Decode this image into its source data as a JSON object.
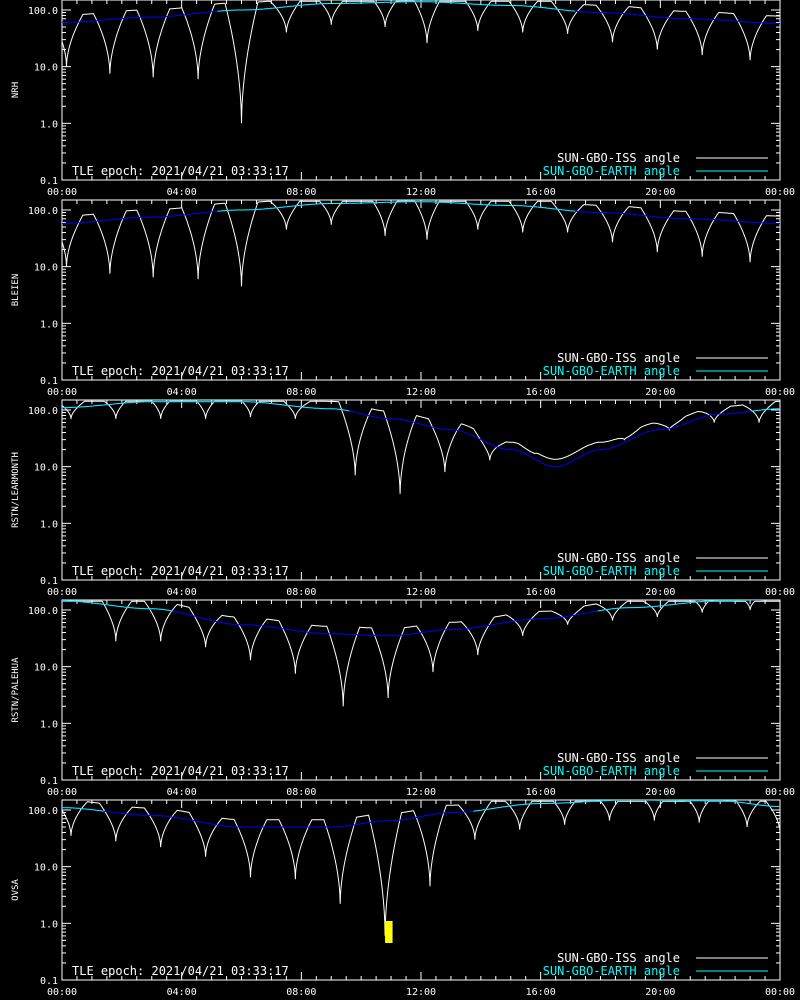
{
  "chart_data": [
    {
      "type": "line",
      "ylabel": "NRH",
      "epoch_label": "TLE epoch: 2021/04/21 03:33:17",
      "x_ticks": [
        "00:00",
        "04:00",
        "08:00",
        "12:00",
        "16:00",
        "20:00",
        "00:00"
      ],
      "y_ticks": [
        "0.1",
        "1.0",
        "10.0",
        "100.0"
      ],
      "y_scale": "log",
      "ylim": [
        0.1,
        150
      ],
      "xlim_hours": [
        0,
        24
      ],
      "grid": false,
      "legend_position": "bottom-right",
      "series": [
        {
          "name": "SUN-GBO-ISS angle",
          "color": "#ffffff",
          "dips": [
            [
              0.15,
              10
            ],
            [
              1.6,
              7.5
            ],
            [
              3.05,
              6.5
            ],
            [
              4.55,
              6.0
            ],
            [
              6.0,
              1.0
            ],
            [
              7.5,
              40
            ],
            [
              9.0,
              55
            ],
            [
              10.8,
              50
            ],
            [
              12.2,
              26
            ],
            [
              13.9,
              43
            ],
            [
              15.4,
              40
            ],
            [
              16.9,
              38
            ],
            [
              18.4,
              27
            ],
            [
              19.9,
              20
            ],
            [
              21.4,
              16
            ],
            [
              23.0,
              13
            ]
          ]
        },
        {
          "name": "SUN-GBO-EARTH angle",
          "color": "#0000ff",
          "color_highlight": "#00ffff",
          "x_hours": [
            0,
            3,
            6,
            9,
            12,
            15,
            18,
            21,
            24
          ],
          "values": [
            60,
            75,
            100,
            130,
            140,
            120,
            90,
            70,
            58
          ]
        }
      ]
    },
    {
      "type": "line",
      "ylabel": "BLEIEN",
      "epoch_label": "TLE epoch: 2021/04/21 03:33:17",
      "x_ticks": [
        "00:00",
        "04:00",
        "08:00",
        "12:00",
        "16:00",
        "20:00",
        "00:00"
      ],
      "y_ticks": [
        "0.1",
        "1.0",
        "10.0",
        "100.0"
      ],
      "y_scale": "log",
      "ylim": [
        0.1,
        150
      ],
      "xlim_hours": [
        0,
        24
      ],
      "grid": false,
      "legend_position": "bottom-right",
      "series": [
        {
          "name": "SUN-GBO-ISS angle",
          "color": "#ffffff",
          "dips": [
            [
              0.15,
              10
            ],
            [
              1.6,
              7.5
            ],
            [
              3.05,
              6.5
            ],
            [
              4.55,
              6.0
            ],
            [
              6.0,
              4.5
            ],
            [
              7.5,
              45
            ],
            [
              9.0,
              55
            ],
            [
              10.8,
              35
            ],
            [
              12.2,
              30
            ],
            [
              13.9,
              45
            ],
            [
              15.4,
              40
            ],
            [
              16.9,
              40
            ],
            [
              18.4,
              27
            ],
            [
              19.9,
              18
            ],
            [
              21.4,
              15
            ],
            [
              23.0,
              12
            ]
          ]
        },
        {
          "name": "SUN-GBO-EARTH angle",
          "color": "#0000ff",
          "color_highlight": "#00ffff",
          "x_hours": [
            0,
            3,
            6,
            9,
            12,
            15,
            18,
            21,
            24
          ],
          "values": [
            58,
            75,
            100,
            130,
            140,
            120,
            90,
            70,
            58
          ]
        }
      ]
    },
    {
      "type": "line",
      "ylabel": "RSTN/LEARMONTH",
      "epoch_label": "TLE epoch: 2021/04/21 03:33:17",
      "x_ticks": [
        "00:00",
        "04:00",
        "08:00",
        "12:00",
        "16:00",
        "20:00",
        "00:00"
      ],
      "y_ticks": [
        "0.1",
        "1.0",
        "10.0",
        "100.0"
      ],
      "y_scale": "log",
      "ylim": [
        0.1,
        150
      ],
      "xlim_hours": [
        0,
        24
      ],
      "grid": false,
      "legend_position": "bottom-right",
      "series": [
        {
          "name": "SUN-GBO-ISS angle",
          "color": "#ffffff",
          "dips": [
            [
              0.3,
              70
            ],
            [
              1.8,
              70
            ],
            [
              3.3,
              70
            ],
            [
              4.8,
              70
            ],
            [
              6.3,
              75
            ],
            [
              7.8,
              70
            ],
            [
              9.8,
              7.0
            ],
            [
              11.3,
              3.3
            ],
            [
              12.8,
              8.0
            ],
            [
              14.3,
              13
            ],
            [
              15.8,
              17
            ],
            [
              17.3,
              24
            ],
            [
              18.8,
              30
            ],
            [
              20.3,
              45
            ],
            [
              21.8,
              60
            ],
            [
              23.3,
              60
            ]
          ]
        },
        {
          "name": "SUN-GBO-EARTH angle",
          "color": "#0000ff",
          "color_highlight": "#00ffff",
          "x_hours": [
            0,
            3,
            6,
            9,
            11,
            13,
            15,
            16.5,
            18,
            20,
            22,
            24
          ],
          "values": [
            110,
            140,
            140,
            105,
            70,
            45,
            20,
            10,
            20,
            45,
            85,
            105
          ]
        }
      ]
    },
    {
      "type": "line",
      "ylabel": "RSTN/PALEHUA",
      "epoch_label": "TLE epoch: 2021/04/21 03:33:17",
      "x_ticks": [
        "00:00",
        "04:00",
        "08:00",
        "12:00",
        "16:00",
        "20:00",
        "00:00"
      ],
      "y_ticks": [
        "0.1",
        "1.0",
        "10.0",
        "100.0"
      ],
      "y_scale": "log",
      "ylim": [
        0.1,
        150
      ],
      "xlim_hours": [
        0,
        24
      ],
      "grid": false,
      "legend_position": "bottom-right",
      "series": [
        {
          "name": "SUN-GBO-ISS angle",
          "color": "#ffffff",
          "dips": [
            [
              1.8,
              28
            ],
            [
              3.3,
              28
            ],
            [
              4.8,
              22
            ],
            [
              6.3,
              13
            ],
            [
              7.8,
              7.5
            ],
            [
              9.4,
              2.0
            ],
            [
              10.9,
              2.8
            ],
            [
              12.4,
              8.0
            ],
            [
              13.9,
              16
            ],
            [
              15.4,
              35
            ],
            [
              16.9,
              55
            ],
            [
              18.4,
              65
            ],
            [
              19.9,
              75
            ],
            [
              21.4,
              90
            ],
            [
              23.0,
              100
            ]
          ]
        },
        {
          "name": "SUN-GBO-EARTH angle",
          "color": "#0000ff",
          "color_highlight": "#00ffff",
          "x_hours": [
            0,
            3,
            6,
            9,
            11,
            13,
            16,
            19,
            22,
            24
          ],
          "values": [
            145,
            105,
            55,
            38,
            35,
            45,
            70,
            110,
            145,
            155
          ]
        }
      ]
    },
    {
      "type": "line",
      "ylabel": "OVSA",
      "epoch_label": "TLE epoch: 2021/04/21 03:33:17",
      "x_ticks": [
        "00:00",
        "04:00",
        "08:00",
        "12:00",
        "16:00",
        "20:00",
        "00:00"
      ],
      "y_ticks": [
        "0.1",
        "1.0",
        "10.0",
        "100.0"
      ],
      "y_scale": "log",
      "ylim": [
        0.1,
        150
      ],
      "xlim_hours": [
        0,
        24
      ],
      "grid": false,
      "legend_position": "bottom-right",
      "series": [
        {
          "name": "SUN-GBO-ISS angle",
          "color": "#ffffff",
          "dips": [
            [
              0.3,
              35
            ],
            [
              1.8,
              28
            ],
            [
              3.3,
              22
            ],
            [
              4.8,
              15
            ],
            [
              6.3,
              6.5
            ],
            [
              7.8,
              6.0
            ],
            [
              9.3,
              2.2
            ],
            [
              10.8,
              0.6
            ],
            [
              12.3,
              4.5
            ],
            [
              13.8,
              30
            ],
            [
              15.3,
              45
            ],
            [
              16.8,
              55
            ],
            [
              18.3,
              65
            ],
            [
              19.8,
              65
            ],
            [
              21.3,
              60
            ],
            [
              22.9,
              50
            ],
            [
              24.0,
              40
            ]
          ]
        },
        {
          "name": "SUN-GBO-EARTH angle",
          "color": "#0000ff",
          "color_highlight": "#00ffff",
          "x_hours": [
            0,
            3,
            6,
            9,
            11,
            13,
            16,
            19,
            22,
            24
          ],
          "values": [
            110,
            80,
            50,
            50,
            65,
            90,
            130,
            150,
            145,
            115
          ]
        }
      ],
      "highlight": {
        "x_hours": [
          10.8,
          11.05
        ],
        "y_range": [
          0.45,
          1.1
        ],
        "color": "#ffff00"
      }
    }
  ]
}
